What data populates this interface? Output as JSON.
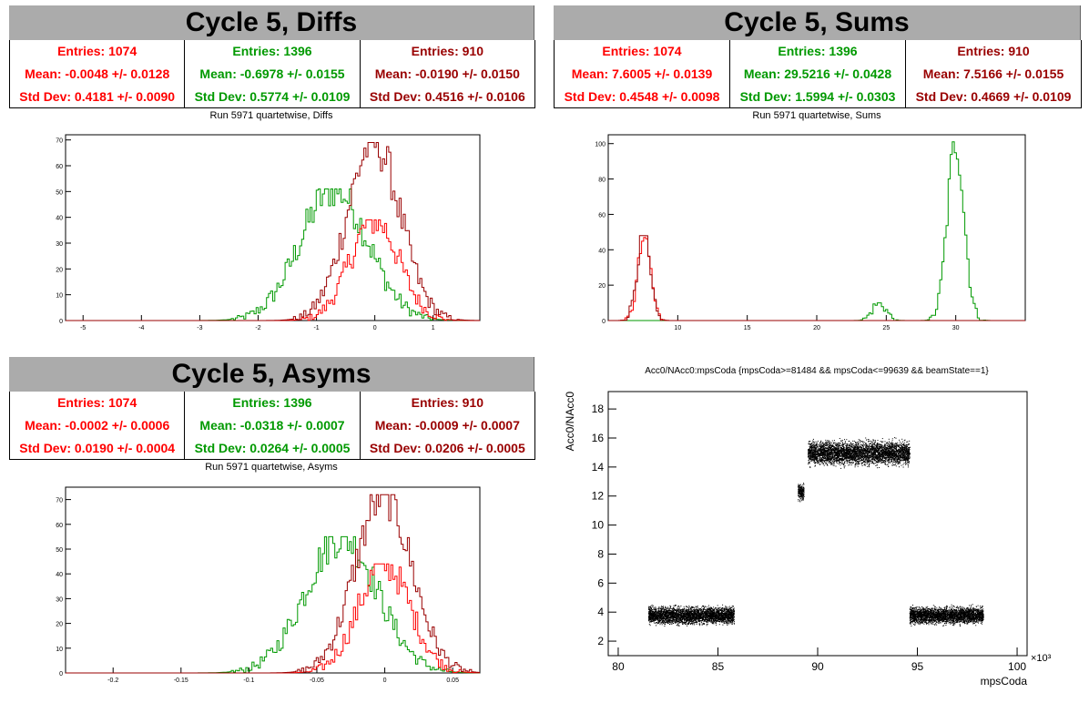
{
  "colors": {
    "red": "#ff0000",
    "green": "#009900",
    "darkred": "#990000"
  },
  "panels": {
    "diffs": {
      "title": "Cycle 5, Diffs",
      "subtitle": "Run 5971 quartetwise, Diffs",
      "stats": [
        {
          "entries": "Entries: 1074",
          "mean": "Mean: -0.0048 +/- 0.0128",
          "std": "Std Dev: 0.4181 +/- 0.0090",
          "color": "#ff0000"
        },
        {
          "entries": "Entries: 1396",
          "mean": "Mean: -0.6978 +/- 0.0155",
          "std": "Std Dev: 0.5774 +/- 0.0109",
          "color": "#009900"
        },
        {
          "entries": "Entries: 910",
          "mean": "Mean: -0.0190 +/- 0.0150",
          "std": "Std Dev: 0.4516 +/- 0.0106",
          "color": "#990000"
        }
      ]
    },
    "sums": {
      "title": "Cycle 5, Sums",
      "subtitle": "Run 5971 quartetwise, Sums",
      "stats": [
        {
          "entries": "Entries: 1074",
          "mean": "Mean: 7.6005 +/- 0.0139",
          "std": "Std Dev: 0.4548 +/- 0.0098",
          "color": "#ff0000"
        },
        {
          "entries": "Entries: 1396",
          "mean": "Mean: 29.5216 +/- 0.0428",
          "std": "Std Dev: 1.5994 +/- 0.0303",
          "color": "#009900"
        },
        {
          "entries": "Entries: 910",
          "mean": "Mean: 7.5166 +/- 0.0155",
          "std": "Std Dev: 0.4669 +/- 0.0109",
          "color": "#990000"
        }
      ]
    },
    "asyms": {
      "title": "Cycle 5, Asyms",
      "subtitle": "Run 5971 quartetwise, Asyms",
      "stats": [
        {
          "entries": "Entries: 1074",
          "mean": "Mean: -0.0002 +/- 0.0006",
          "std": "Std Dev: 0.0190 +/- 0.0004",
          "color": "#ff0000"
        },
        {
          "entries": "Entries: 1396",
          "mean": "Mean: -0.0318 +/- 0.0007",
          "std": "Std Dev: 0.0264 +/- 0.0005",
          "color": "#009900"
        },
        {
          "entries": "Entries: 910",
          "mean": "Mean: -0.0009 +/- 0.0007",
          "std": "Std Dev: 0.0206 +/- 0.0005",
          "color": "#990000"
        }
      ]
    },
    "scatter": {
      "title": "Acc0/NAcc0:mpsCoda {mpsCoda>=81484 && mpsCoda<=99639 && beamState==1}"
    }
  },
  "chart_data": [
    {
      "type": "histogram",
      "xlim": [
        -5.3,
        1.8
      ],
      "ylim": [
        0,
        72
      ],
      "xticks": [
        -5,
        -4,
        -3,
        -2,
        -1,
        0,
        1
      ],
      "yticks": [
        0,
        10,
        20,
        30,
        40,
        50,
        60,
        70
      ],
      "series": [
        {
          "color": "#009900",
          "mean": -0.6978,
          "std": 0.5774,
          "peak": 51
        },
        {
          "color": "#ff0000",
          "mean": -0.0048,
          "std": 0.4181,
          "peak": 39
        },
        {
          "color": "#990000",
          "mean": -0.019,
          "std": 0.4516,
          "peak": 69
        }
      ]
    },
    {
      "type": "histogram",
      "xlim": [
        5.0,
        35.0
      ],
      "ylim": [
        0,
        105
      ],
      "xticks": [
        10,
        15,
        20,
        25,
        30
      ],
      "yticks": [
        0,
        20,
        40,
        60,
        80,
        100
      ],
      "series": [
        {
          "color": "#009900",
          "mean": 30.0,
          "std": 0.6,
          "peak": 101
        },
        {
          "color": "#009900",
          "mean": 24.5,
          "std": 0.5,
          "peak": 10
        },
        {
          "color": "#ff0000",
          "mean": 7.6005,
          "std": 0.4548,
          "peak": 47
        },
        {
          "color": "#990000",
          "mean": 7.5166,
          "std": 0.4669,
          "peak": 48
        }
      ]
    },
    {
      "type": "histogram",
      "xlim": [
        -0.235,
        0.07
      ],
      "ylim": [
        0,
        75
      ],
      "xticks": [
        -0.2,
        -0.15,
        -0.1,
        -0.05,
        0,
        0.05
      ],
      "yticks": [
        0,
        10,
        20,
        30,
        40,
        50,
        60,
        70
      ],
      "series": [
        {
          "color": "#009900",
          "mean": -0.0318,
          "std": 0.0264,
          "peak": 55
        },
        {
          "color": "#ff0000",
          "mean": -0.0002,
          "std": 0.019,
          "peak": 44
        },
        {
          "color": "#990000",
          "mean": -0.0009,
          "std": 0.0206,
          "peak": 72
        }
      ]
    },
    {
      "type": "scatter",
      "xlabel": "mpsCoda",
      "ylabel": "Acc0/NAcc0",
      "xexponent": "×10³",
      "xlim": [
        79.5,
        100.5
      ],
      "ylim": [
        1.0,
        19.2
      ],
      "xticks": [
        80,
        85,
        90,
        95,
        100
      ],
      "yticks": [
        2,
        4,
        6,
        8,
        10,
        12,
        14,
        16,
        18
      ],
      "clusters": [
        {
          "x": [
            81.5,
            85.8
          ],
          "y_center": 3.8,
          "y_spread": 0.5
        },
        {
          "x": [
            89.0,
            89.3
          ],
          "y_center": 12.3,
          "y_spread": 0.5
        },
        {
          "x": [
            89.5,
            94.6
          ],
          "y_center": 15.0,
          "y_spread": 0.7
        },
        {
          "x": [
            94.6,
            98.3
          ],
          "y_center": 3.8,
          "y_spread": 0.5
        }
      ]
    }
  ]
}
